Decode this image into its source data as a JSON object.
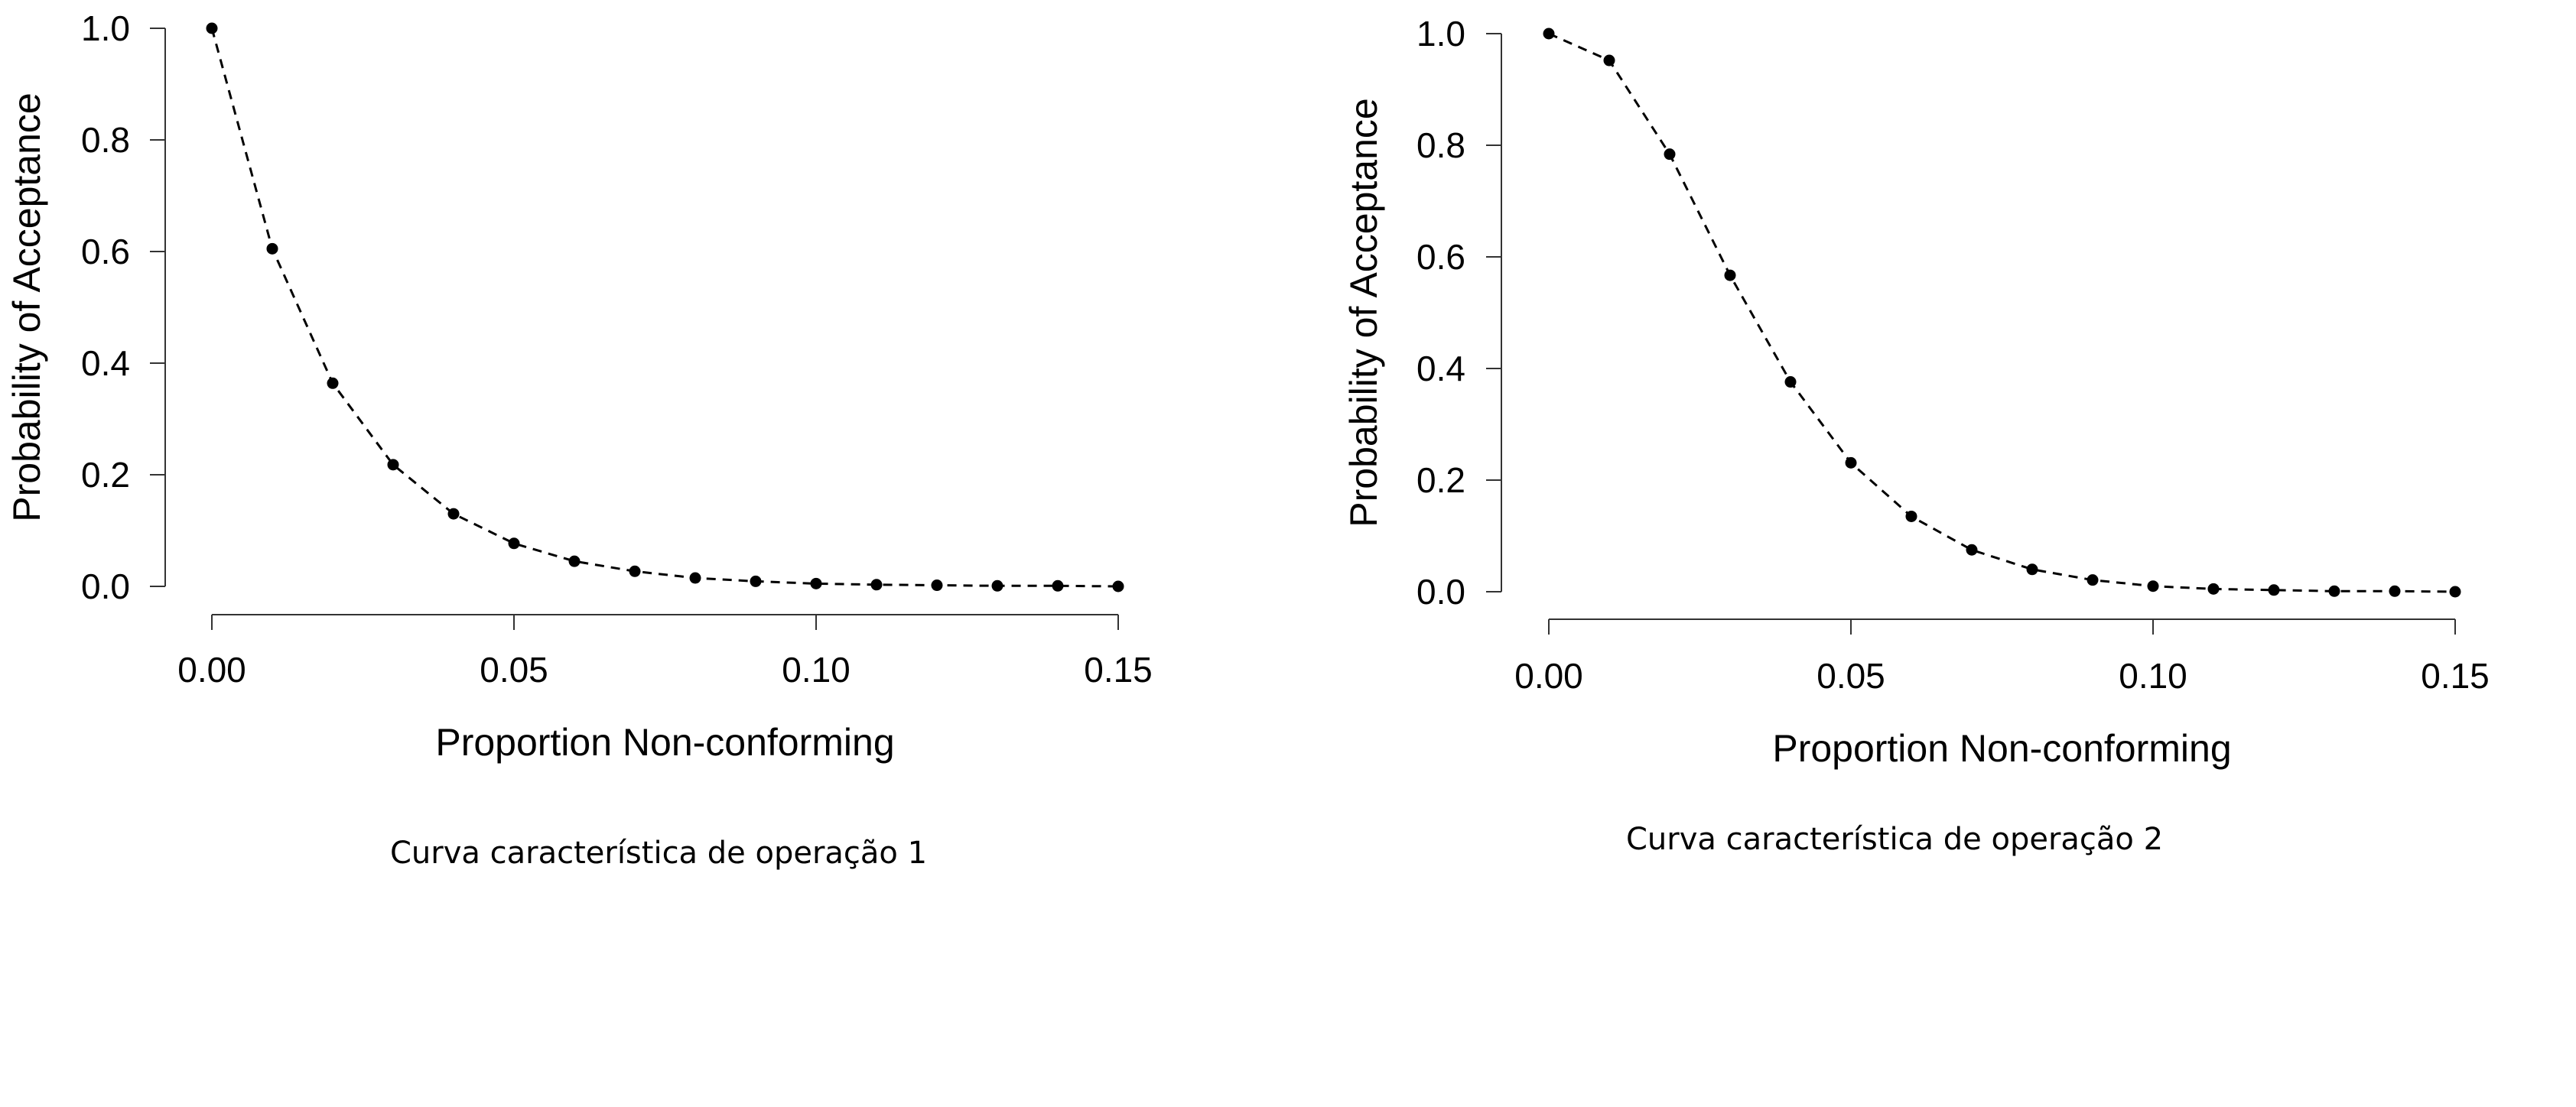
{
  "chart_data": [
    {
      "type": "line",
      "caption": "Curva característica de operação 1",
      "xlabel": "Proportion Non-conforming",
      "ylabel": "Probability of Acceptance",
      "xlim": [
        0.0,
        0.15
      ],
      "ylim": [
        0.0,
        1.0
      ],
      "xticks": [
        "0.00",
        "0.05",
        "0.10",
        "0.15"
      ],
      "yticks": [
        "0.0",
        "0.2",
        "0.4",
        "0.6",
        "0.8",
        "1.0"
      ],
      "line_style": "dashed",
      "marker": "filled-circle",
      "grid": false,
      "x": [
        0.0,
        0.01,
        0.02,
        0.03,
        0.04,
        0.05,
        0.06,
        0.07,
        0.08,
        0.09,
        0.1,
        0.11,
        0.12,
        0.13,
        0.14,
        0.15
      ],
      "y": [
        1.0,
        0.605,
        0.364,
        0.218,
        0.13,
        0.077,
        0.045,
        0.027,
        0.015,
        0.009,
        0.005,
        0.003,
        0.002,
        0.001,
        0.001,
        0.0
      ]
    },
    {
      "type": "line",
      "caption": "Curva característica de operação 2",
      "xlabel": "Proportion Non-conforming",
      "ylabel": "Probability of Acceptance",
      "xlim": [
        0.0,
        0.15
      ],
      "ylim": [
        0.0,
        1.0
      ],
      "xticks": [
        "0.00",
        "0.05",
        "0.10",
        "0.15"
      ],
      "yticks": [
        "0.0",
        "0.2",
        "0.4",
        "0.6",
        "0.8",
        "1.0"
      ],
      "line_style": "dashed",
      "marker": "filled-circle",
      "grid": false,
      "x": [
        0.0,
        0.01,
        0.02,
        0.03,
        0.04,
        0.05,
        0.06,
        0.07,
        0.08,
        0.09,
        0.1,
        0.11,
        0.12,
        0.13,
        0.14,
        0.15
      ],
      "y": [
        1.0,
        0.952,
        0.784,
        0.567,
        0.376,
        0.231,
        0.135,
        0.075,
        0.04,
        0.021,
        0.01,
        0.005,
        0.003,
        0.001,
        0.001,
        0.0
      ]
    }
  ]
}
